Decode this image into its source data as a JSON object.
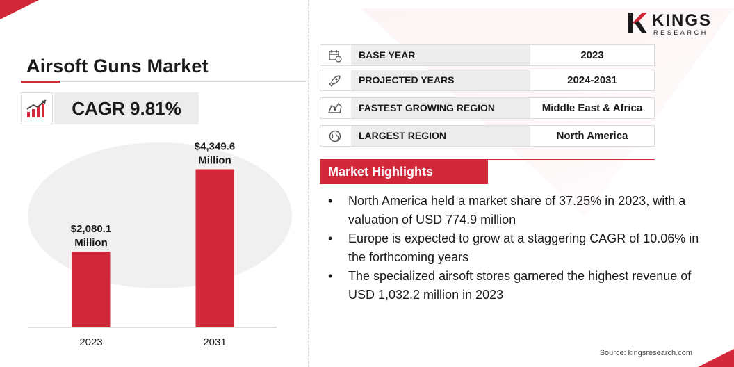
{
  "title": "Airsoft Guns Market",
  "cagr": "CAGR 9.81%",
  "logo": {
    "name": "KINGS",
    "sub": "RESEARCH"
  },
  "info": [
    {
      "icon": "calendar-icon",
      "key": "BASE YEAR",
      "value": "2023"
    },
    {
      "icon": "rocket-icon",
      "key": "PROJECTED YEARS",
      "value": "2024-2031"
    },
    {
      "icon": "map-icon",
      "key": "FASTEST GROWING REGION",
      "value": "Middle East & Africa"
    },
    {
      "icon": "globe-icon",
      "key": "LARGEST REGION",
      "value": "North America"
    }
  ],
  "highlights": {
    "heading": "Market Highlights",
    "items": [
      "North America held a market share of 37.25% in 2023, with a valuation of USD 774.9 million",
      "Europe is expected to grow at a staggering CAGR of 10.06% in the forthcoming years",
      "The specialized airsoft stores garnered the highest revenue of USD 1,032.2 million in 2023"
    ]
  },
  "source": "Source: kingsresearch.com",
  "colors": {
    "accent": "#d1293a",
    "panel": "#ececec"
  },
  "chart_data": {
    "type": "bar",
    "categories": [
      "2023",
      "2031"
    ],
    "values": [
      2080.1,
      4349.6
    ],
    "data_labels": [
      [
        "$2,080.1",
        "Million"
      ],
      [
        "$4,349.6",
        "Million"
      ]
    ],
    "ylim": [
      0,
      4800
    ],
    "grid": false
  }
}
